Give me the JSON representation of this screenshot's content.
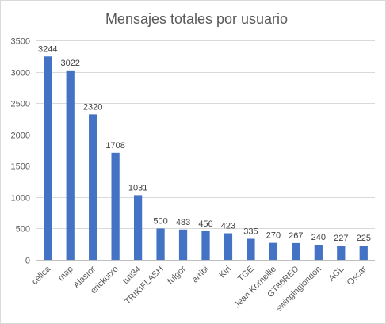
{
  "chart_data": {
    "type": "bar",
    "title": "Mensajes totales por usuario",
    "xlabel": "",
    "ylabel": "",
    "ylim": [
      0,
      3500
    ],
    "yticks": [
      0,
      500,
      1000,
      1500,
      2000,
      2500,
      3000,
      3500
    ],
    "grid": true,
    "legend": "none",
    "bar_color": "#4472c4",
    "categories": [
      "celica",
      "map",
      "Alastor",
      "erickutxo",
      "tuti34",
      "TRIKIFLASH",
      "fulgor",
      "arribi",
      "Kiri",
      "TGE",
      "Jean Korneille",
      "GT86RED",
      "swinginglondon",
      "AGL",
      "Oscar"
    ],
    "values": [
      3244,
      3022,
      2320,
      1708,
      1031,
      500,
      483,
      456,
      423,
      335,
      270,
      267,
      240,
      227,
      225
    ]
  }
}
